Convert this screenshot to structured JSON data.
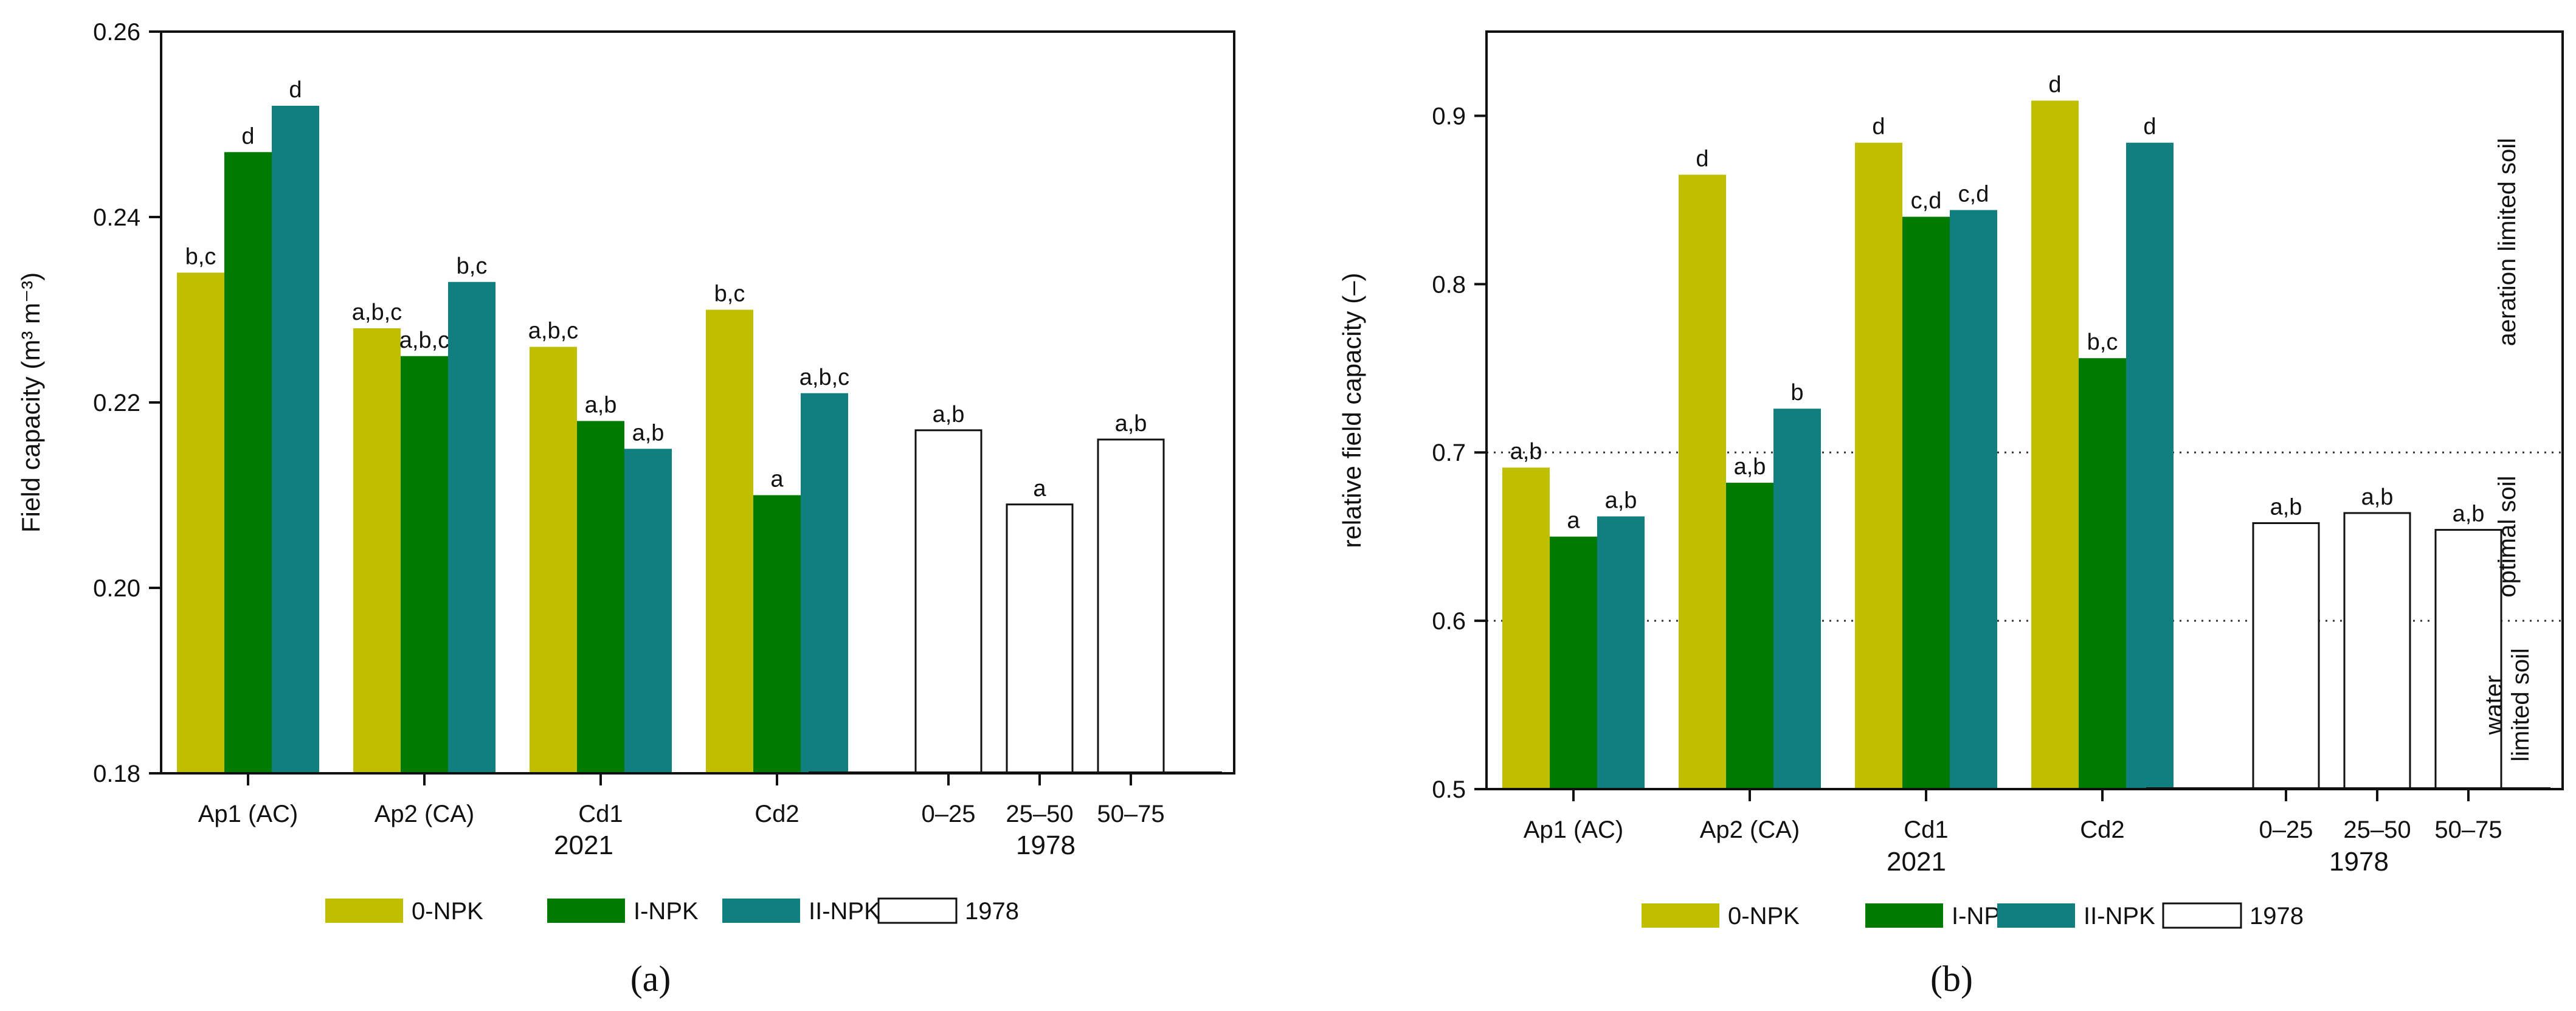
{
  "chart_data": [
    {
      "type": "bar",
      "panel_label": "(a)",
      "ylabel": "Field capacity (m³ m⁻³)",
      "ylim": [
        0.18,
        0.26
      ],
      "yticks": [
        "0.18",
        "0.20",
        "0.22",
        "0.24",
        "0.26"
      ],
      "categories": [
        "Ap1 (AC)",
        "Ap2 (CA)",
        "Cd1",
        "Cd2",
        "0–25",
        "25–50",
        "50–75"
      ],
      "group_labels": [
        "2021",
        "1978"
      ],
      "series": [
        {
          "name": "0-NPK",
          "color": "#bfbf00",
          "values": [
            0.234,
            0.228,
            0.226,
            0.23,
            null,
            null,
            null
          ],
          "labels": [
            "b,c",
            "a,b,c",
            "a,b,c",
            "b,c",
            "",
            "",
            ""
          ]
        },
        {
          "name": "I-NPK",
          "color": "#007a00",
          "values": [
            0.247,
            0.225,
            0.218,
            0.21,
            null,
            null,
            null
          ],
          "labels": [
            "d",
            "a,b,c",
            "a,b",
            "a",
            "",
            "",
            ""
          ]
        },
        {
          "name": "II-NPK",
          "color": "#117f7f",
          "values": [
            0.252,
            0.233,
            0.215,
            0.221,
            null,
            null,
            null
          ],
          "labels": [
            "d",
            "b,c",
            "a,b",
            "a,b,c",
            "",
            "",
            ""
          ]
        },
        {
          "name": "1978",
          "color": "#ffffff",
          "values": [
            null,
            null,
            null,
            null,
            0.217,
            0.209,
            0.216
          ],
          "labels": [
            "",
            "",
            "",
            "",
            "a,b",
            "a",
            "a,b"
          ]
        }
      ],
      "legend": [
        "0-NPK",
        "I-NPK",
        "II-NPK",
        "1978"
      ],
      "legend_position": "bottom",
      "grid": false
    },
    {
      "type": "bar",
      "panel_label": "(b)",
      "ylabel": "relative field capacity  (–)",
      "ylim": [
        0.5,
        0.95
      ],
      "yticks": [
        "0.5",
        "0.6",
        "0.7",
        "0.8",
        "0.9"
      ],
      "categories": [
        "Ap1 (AC)",
        "Ap2 (CA)",
        "Cd1",
        "Cd2",
        "0–25",
        "25–50",
        "50–75"
      ],
      "group_labels": [
        "2021",
        "1978"
      ],
      "series": [
        {
          "name": "0-NPK",
          "color": "#bfbf00",
          "values": [
            0.691,
            0.865,
            0.884,
            0.909,
            null,
            null,
            null
          ],
          "labels": [
            "a,b",
            "d",
            "d",
            "d",
            "",
            "",
            ""
          ]
        },
        {
          "name": "I-NPK",
          "color": "#007a00",
          "values": [
            0.65,
            0.682,
            0.84,
            0.756,
            null,
            null,
            null
          ],
          "labels": [
            "a",
            "a,b",
            "c,d",
            "b,c",
            "",
            "",
            ""
          ]
        },
        {
          "name": "II-NPK",
          "color": "#117f7f",
          "values": [
            0.662,
            0.726,
            0.844,
            0.884,
            null,
            null,
            null
          ],
          "labels": [
            "a,b",
            "b",
            "c,d",
            "d",
            "",
            "",
            ""
          ]
        },
        {
          "name": "1978",
          "color": "#ffffff",
          "values": [
            null,
            null,
            null,
            null,
            0.658,
            0.664,
            0.654
          ],
          "labels": [
            "",
            "",
            "",
            "",
            "a,b",
            "a,b",
            "a,b"
          ]
        }
      ],
      "reference_lines": [
        0.6,
        0.7
      ],
      "zone_labels": [
        {
          "text": "aeration limited soil",
          "from": 0.7,
          "to": 0.95
        },
        {
          "text": "optimal soil",
          "from": 0.6,
          "to": 0.7
        },
        {
          "lines": [
            "water",
            "limited soil"
          ],
          "from": 0.5,
          "to": 0.6
        }
      ],
      "legend": [
        "0-NPK",
        "I-NPK",
        "II-NPK",
        "1978"
      ],
      "legend_position": "bottom",
      "grid": false
    }
  ]
}
